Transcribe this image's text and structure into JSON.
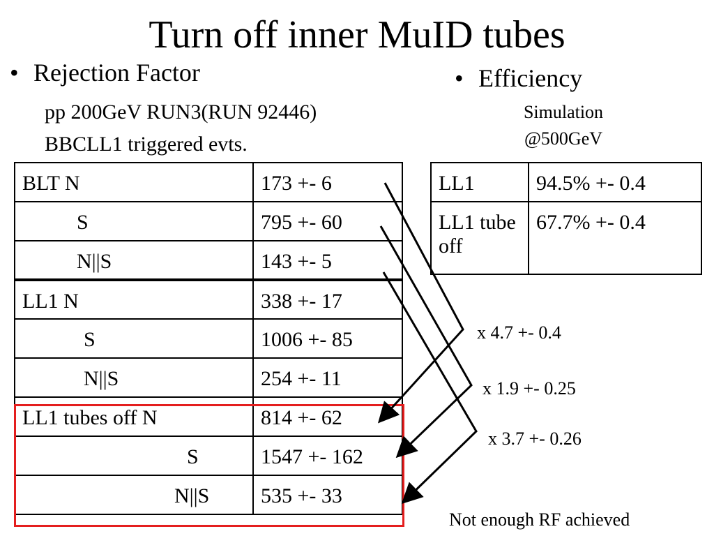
{
  "title": "Turn off inner MuID tubes",
  "left": {
    "bullet": "Rejection Factor",
    "line1": "pp 200GeV RUN3(RUN 92446)",
    "line2": "BBCLL1 triggered evts."
  },
  "right": {
    "bullet": "Efficiency",
    "line1": "Simulation",
    "line2": "@500GeV"
  },
  "bullet_symbol": "•",
  "rejection_table": [
    {
      "label": "BLT N",
      "value": "173 +- 6"
    },
    {
      "label": "S",
      "value": "795 +- 60"
    },
    {
      "label": "N||S",
      "value": "143 +- 5"
    },
    {
      "label": "LL1  N",
      "value": "338 +- 17"
    },
    {
      "label": "S",
      "value": "1006 +- 85"
    },
    {
      "label": "N||S",
      "value": "254 +- 11"
    },
    {
      "label": "LL1  tubes off N",
      "value": "814 +- 62"
    },
    {
      "label": "S",
      "value": "1547 +- 162"
    },
    {
      "label": "N||S",
      "value": "535 +- 33"
    }
  ],
  "efficiency_table": [
    {
      "label": "LL1",
      "value": "94.5% +- 0.4"
    },
    {
      "label": "LL1 tube off",
      "value": "67.7% +- 0.4"
    }
  ],
  "ratios": [
    "x 4.7 +- 0.4",
    "x 1.9 +- 0.25",
    "x 3.7 +- 0.26"
  ],
  "note": "Not enough RF achieved",
  "colors": {
    "highlight_box": "#e41e1e",
    "text": "#000000"
  }
}
